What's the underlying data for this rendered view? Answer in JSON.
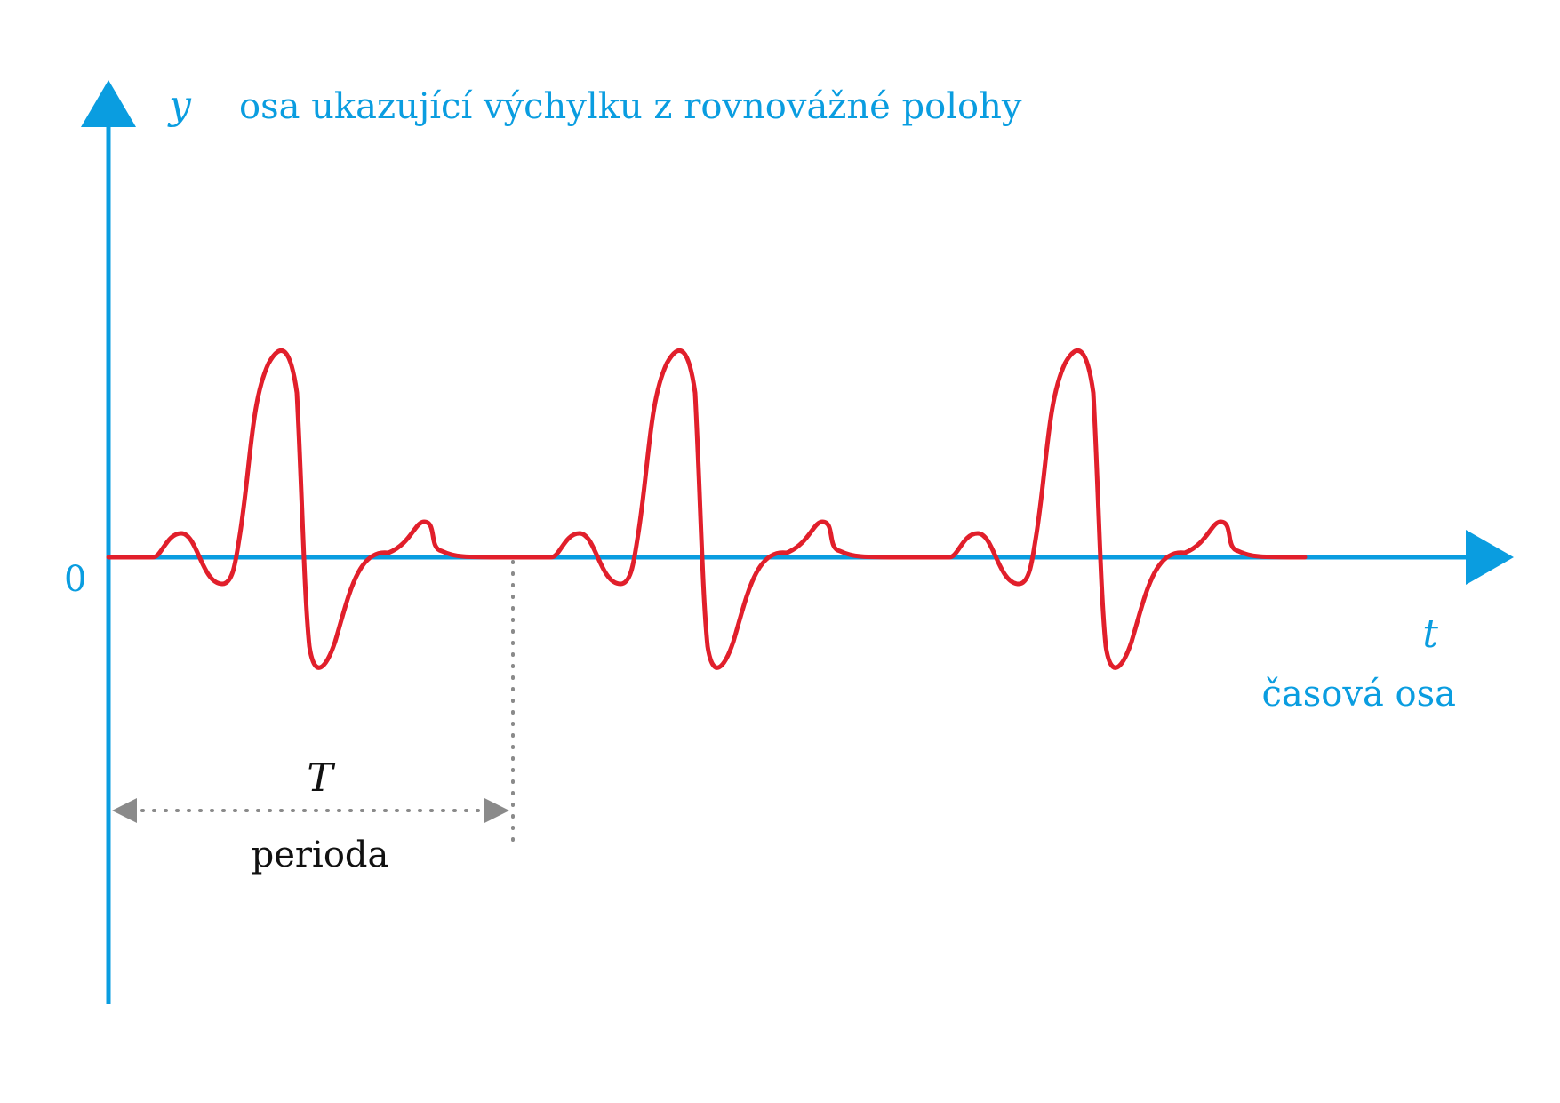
{
  "colors": {
    "axis": "#0a9de0",
    "signal": "#e11f2b",
    "period": "#8a8a8a",
    "text_dark": "#111111"
  },
  "labels": {
    "y_symbol": "y",
    "y_axis_label": "osa ukazující výchylku z rovnovážné polohy",
    "zero": "0",
    "t_symbol": "t",
    "t_axis_label": "časová osa",
    "period_symbol": "T",
    "period_label": "perioda"
  },
  "icons": {
    "y_arrow": "arrow-up-icon",
    "t_arrow": "arrow-right-icon",
    "period_left": "arrow-left-icon",
    "period_right": "arrow-right-icon"
  },
  "signal": {
    "periods_shown": 3
  }
}
